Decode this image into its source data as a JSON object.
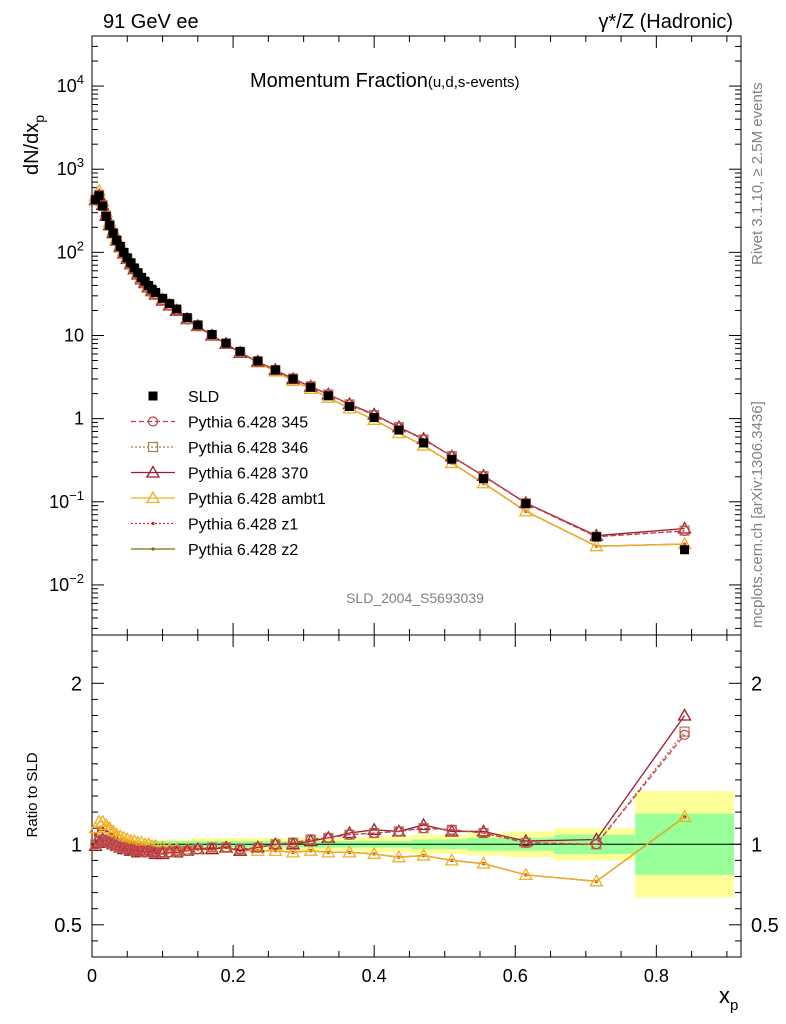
{
  "header": {
    "left": "91 GeV ee",
    "right": "γ*/Z (Hadronic)"
  },
  "side_labels": {
    "rivet": "Rivet 3.1.10, ≥ 2.5M events",
    "mcplots": "mcplots.cern.ch [arXiv:1306.3436]"
  },
  "chart_data": {
    "type": "scatter",
    "title_main": "Momentum Fraction",
    "title_sub": "(u,d,s-events)",
    "analysis_label": "SLD_2004_S5693039",
    "xlabel": "x",
    "xlabel_sub": "p",
    "ylabel": "dN/dx",
    "ylabel_sub": "p",
    "ratio_ylabel": "Ratio to SLD",
    "xlim": [
      0,
      0.92
    ],
    "ylim": [
      0.0025,
      40000
    ],
    "ylog": true,
    "ratio_ylim": [
      0.3,
      2.3
    ],
    "x_ticks": [
      {
        "v": 0,
        "label": "0"
      },
      {
        "v": 0.2,
        "label": "0.2"
      },
      {
        "v": 0.4,
        "label": "0.4"
      },
      {
        "v": 0.6,
        "label": "0.6"
      },
      {
        "v": 0.8,
        "label": "0.8"
      }
    ],
    "y_ticks": [
      {
        "v": 0.01,
        "base": "10",
        "exp": "−2"
      },
      {
        "v": 0.1,
        "base": "10",
        "exp": "−1"
      },
      {
        "v": 1,
        "base": "1",
        "exp": ""
      },
      {
        "v": 10,
        "base": "10",
        "exp": ""
      },
      {
        "v": 100,
        "base": "10",
        "exp": "2"
      },
      {
        "v": 1000,
        "base": "10",
        "exp": "3"
      },
      {
        "v": 10000,
        "base": "10",
        "exp": "4"
      }
    ],
    "ratio_ticks": [
      {
        "v": 0.5,
        "label": "0.5"
      },
      {
        "v": 1,
        "label": "1"
      },
      {
        "v": 2,
        "label": "2"
      }
    ],
    "x": [
      0.005,
      0.01,
      0.015,
      0.02,
      0.025,
      0.03,
      0.035,
      0.04,
      0.045,
      0.05,
      0.055,
      0.06,
      0.065,
      0.07,
      0.075,
      0.08,
      0.085,
      0.09,
      0.1,
      0.11,
      0.12,
      0.135,
      0.15,
      0.17,
      0.19,
      0.21,
      0.235,
      0.26,
      0.285,
      0.31,
      0.335,
      0.365,
      0.4,
      0.435,
      0.47,
      0.51,
      0.555,
      0.615,
      0.715,
      0.84
    ],
    "bin_edges": [
      0,
      0.0075,
      0.0125,
      0.0175,
      0.0225,
      0.0275,
      0.0325,
      0.0375,
      0.0425,
      0.0475,
      0.0525,
      0.0575,
      0.0625,
      0.0675,
      0.0725,
      0.0775,
      0.0825,
      0.0875,
      0.095,
      0.105,
      0.115,
      0.1275,
      0.1425,
      0.16,
      0.18,
      0.2,
      0.2225,
      0.2475,
      0.2725,
      0.2975,
      0.3225,
      0.35,
      0.3825,
      0.4175,
      0.4525,
      0.49,
      0.5325,
      0.585,
      0.655,
      0.77,
      0.91
    ],
    "band_inner": [
      0.02,
      0.02,
      0.02,
      0.02,
      0.02,
      0.02,
      0.02,
      0.02,
      0.02,
      0.02,
      0.02,
      0.02,
      0.02,
      0.02,
      0.02,
      0.02,
      0.02,
      0.02,
      0.02,
      0.02,
      0.02,
      0.02,
      0.02,
      0.02,
      0.02,
      0.02,
      0.02,
      0.02,
      0.02,
      0.02,
      0.02,
      0.02,
      0.02,
      0.02,
      0.03,
      0.03,
      0.04,
      0.04,
      0.06,
      0.19
    ],
    "band_outer": [
      0.025,
      0.025,
      0.025,
      0.025,
      0.025,
      0.025,
      0.025,
      0.025,
      0.025,
      0.025,
      0.025,
      0.025,
      0.025,
      0.025,
      0.025,
      0.025,
      0.025,
      0.025,
      0.03,
      0.03,
      0.03,
      0.03,
      0.04,
      0.04,
      0.04,
      0.04,
      0.04,
      0.04,
      0.04,
      0.04,
      0.04,
      0.04,
      0.05,
      0.05,
      0.06,
      0.06,
      0.07,
      0.08,
      0.1,
      0.33
    ],
    "series": [
      {
        "name": "SLD",
        "color": "#000000",
        "marker": "square",
        "line": "none",
        "values": [
          430,
          480,
          360,
          270,
          210,
          170,
          140,
          118,
          100,
          86,
          75,
          65,
          57,
          50,
          45,
          40,
          36,
          33,
          28,
          24.2,
          20.8,
          16.4,
          13.4,
          10.3,
          8.1,
          6.45,
          4.95,
          3.85,
          3.0,
          2.38,
          1.88,
          1.4,
          1.03,
          0.73,
          0.51,
          0.325,
          0.19,
          0.095,
          0.038,
          0.0265
        ]
      },
      {
        "name": "Pythia 6.428 345",
        "color": "#c83a4a",
        "marker": "circle",
        "line": "dashed",
        "ratio": [
          1.0,
          1.02,
          1.03,
          1.02,
          1.01,
          1.0,
          0.99,
          0.98,
          0.98,
          0.97,
          0.97,
          0.96,
          0.96,
          0.96,
          0.95,
          0.96,
          0.95,
          0.95,
          0.95,
          0.95,
          0.96,
          0.96,
          0.97,
          0.98,
          0.98,
          0.97,
          0.98,
          1.0,
          1.01,
          1.03,
          1.04,
          1.06,
          1.07,
          1.08,
          1.1,
          1.09,
          1.07,
          1.01,
          1.0,
          1.68
        ]
      },
      {
        "name": "Pythia 6.428 346",
        "color": "#a97c50",
        "marker": "square-open",
        "line": "dotted",
        "ratio": [
          1.0,
          1.02,
          1.03,
          1.02,
          1.01,
          1.0,
          0.99,
          0.98,
          0.98,
          0.97,
          0.97,
          0.96,
          0.96,
          0.96,
          0.95,
          0.96,
          0.95,
          0.95,
          0.95,
          0.95,
          0.96,
          0.96,
          0.97,
          0.98,
          0.98,
          0.97,
          0.98,
          1.0,
          1.01,
          1.03,
          1.04,
          1.06,
          1.07,
          1.08,
          1.1,
          1.09,
          1.07,
          1.01,
          1.0,
          1.7
        ]
      },
      {
        "name": "Pythia 6.428 370",
        "color": "#9b1b30",
        "marker": "triangle-open",
        "line": "solid",
        "ratio": [
          0.99,
          1.01,
          1.03,
          1.02,
          1.01,
          1.0,
          0.99,
          0.98,
          0.97,
          0.97,
          0.96,
          0.96,
          0.95,
          0.95,
          0.95,
          0.95,
          0.95,
          0.94,
          0.94,
          0.95,
          0.95,
          0.96,
          0.97,
          0.97,
          0.98,
          0.96,
          0.98,
          1.0,
          1.0,
          1.02,
          1.04,
          1.07,
          1.09,
          1.08,
          1.12,
          1.08,
          1.08,
          1.02,
          1.03,
          1.8
        ]
      },
      {
        "name": "Pythia 6.428 ambt1",
        "color": "#f0b020",
        "marker": "triangle-open",
        "line": "solid",
        "ratio": [
          1.1,
          1.14,
          1.14,
          1.12,
          1.1,
          1.08,
          1.06,
          1.05,
          1.04,
          1.03,
          1.02,
          1.02,
          1.01,
          1.01,
          1.0,
          1.0,
          0.99,
          0.99,
          0.98,
          0.97,
          0.97,
          0.97,
          0.97,
          0.97,
          0.98,
          0.96,
          0.96,
          0.96,
          0.95,
          0.96,
          0.95,
          0.95,
          0.94,
          0.92,
          0.93,
          0.9,
          0.88,
          0.81,
          0.77,
          1.17
        ]
      },
      {
        "name": "Pythia 6.428 z1",
        "color": "#e02020",
        "marker": "dot",
        "line": "dotted",
        "ratio": [
          1.06,
          1.1,
          1.1,
          1.09,
          1.07,
          1.06,
          1.04,
          1.03,
          1.02,
          1.02,
          1.01,
          1.01,
          1.0,
          1.0,
          0.99,
          0.99,
          0.99,
          0.98,
          0.98,
          0.97,
          0.97,
          0.97,
          0.97,
          0.97,
          0.98,
          0.96,
          0.96,
          0.96,
          0.95,
          0.96,
          0.95,
          0.95,
          0.94,
          0.92,
          0.93,
          0.9,
          0.88,
          0.81,
          0.77,
          1.17
        ]
      },
      {
        "name": "Pythia 6.428 z2",
        "color": "#7a6a10",
        "marker": "dot",
        "line": "solid",
        "ratio": [
          1.05,
          1.09,
          1.09,
          1.08,
          1.07,
          1.05,
          1.04,
          1.03,
          1.02,
          1.02,
          1.01,
          1.01,
          1.0,
          1.0,
          0.99,
          0.99,
          0.99,
          0.98,
          0.98,
          0.97,
          0.97,
          0.97,
          0.97,
          0.97,
          0.98,
          0.96,
          0.96,
          0.96,
          0.95,
          0.96,
          0.95,
          0.95,
          0.94,
          0.92,
          0.93,
          0.9,
          0.88,
          0.81,
          0.77,
          1.17
        ]
      }
    ]
  }
}
